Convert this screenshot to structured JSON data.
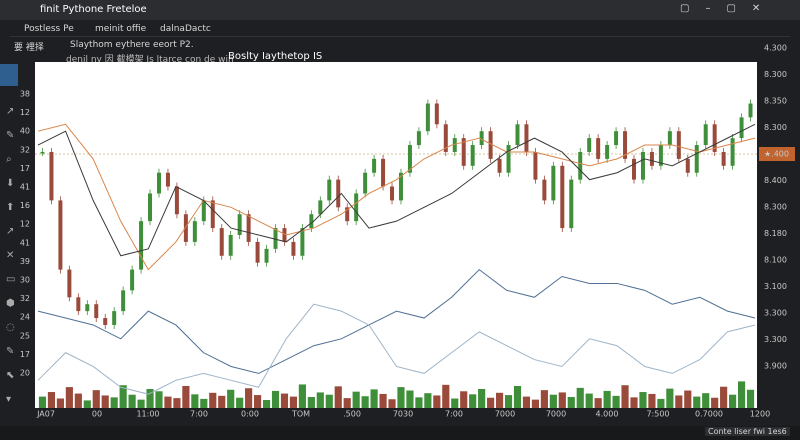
{
  "window": {
    "title": "finit Pythone Freteloe",
    "tabs": [
      "Postless Pe",
      "meinit offie",
      "dalnaDactc"
    ],
    "subtitle": "Slaythom eythere eeort P2.",
    "menu": "要 裡择",
    "toolbar_text": "denil ny 因 截模架 Is ltarce con de win",
    "toolbar_bold": "Boslty Iaythetop IS",
    "status": "Conte liser fwi 1es6"
  },
  "chart": {
    "left_axis": [
      "38",
      "12",
      "40",
      "32",
      "17",
      "41",
      "16",
      "12",
      "41",
      "39",
      "30",
      "32",
      "24",
      "25",
      "17",
      "20"
    ],
    "right_axis": [
      "4.300",
      "8.300",
      "8.350",
      "8.300",
      "★.400",
      "8.400",
      "8.300",
      "8.180",
      "8.100",
      "3.100",
      "3.300",
      "3.300",
      "3.900"
    ],
    "highlight_index": 4,
    "x_labels": [
      "JA07",
      "00",
      "11:00",
      "7:00",
      "0:00",
      "TOM",
      ".500",
      "7030",
      "7:00",
      "7000",
      "7000",
      "4.000",
      "7:500",
      "0.7000",
      "1200"
    ],
    "ylim": [
      8.0,
      8.5
    ],
    "vol_lim": [
      0,
      100
    ],
    "up_color": "#3f8f3a",
    "down_color": "#9a4a3a",
    "closes": [
      8.37,
      8.3,
      8.2,
      8.16,
      8.14,
      8.15,
      8.13,
      8.12,
      8.14,
      8.17,
      8.2,
      8.27,
      8.31,
      8.34,
      8.32,
      8.28,
      8.24,
      8.27,
      8.3,
      8.26,
      8.22,
      8.25,
      8.28,
      8.24,
      8.21,
      8.23,
      8.26,
      8.24,
      8.22,
      8.26,
      8.28,
      8.3,
      8.33,
      8.29,
      8.27,
      8.31,
      8.34,
      8.36,
      8.32,
      8.3,
      8.34,
      8.38,
      8.4,
      8.44,
      8.41,
      8.37,
      8.39,
      8.35,
      8.38,
      8.4,
      8.36,
      8.34,
      8.38,
      8.41,
      8.37,
      8.33,
      8.3,
      8.35,
      8.26,
      8.33,
      8.37,
      8.39,
      8.36,
      8.38,
      8.4,
      8.36,
      8.33,
      8.37,
      8.35,
      8.38,
      8.4,
      8.36,
      8.34,
      8.38,
      8.41,
      8.37,
      8.35,
      8.39,
      8.42,
      8.44
    ],
    "volumes": [
      30,
      42,
      25,
      55,
      38,
      20,
      47,
      33,
      28,
      60,
      35,
      22,
      50,
      44,
      30,
      26,
      58,
      36,
      24,
      40,
      32,
      48,
      27,
      52,
      34,
      21,
      45,
      38,
      30,
      62,
      29,
      41,
      35,
      57,
      26,
      43,
      31,
      49,
      37,
      23,
      55,
      46,
      28,
      39,
      33,
      61,
      25,
      44,
      36,
      50,
      27,
      40,
      34,
      58,
      30,
      22,
      47,
      35,
      41,
      29,
      53,
      38,
      26,
      45,
      32,
      60,
      28,
      42,
      37,
      24,
      51,
      33,
      46,
      30,
      39,
      27,
      56,
      35,
      70,
      48
    ],
    "lines": [
      {
        "name": "MA",
        "color": "#d9864a",
        "values": [
          8.4,
          8.41,
          8.36,
          8.27,
          8.2,
          8.24,
          8.3,
          8.29,
          8.27,
          8.25,
          8.26,
          8.28,
          8.31,
          8.33,
          8.36,
          8.38,
          8.39,
          8.37,
          8.37,
          8.36,
          8.35,
          8.36,
          8.38,
          8.38,
          8.37,
          8.38,
          8.39
        ]
      },
      {
        "name": "MA2",
        "color": "#3a3a3a",
        "values": [
          8.38,
          8.4,
          8.3,
          8.22,
          8.23,
          8.32,
          8.3,
          8.26,
          8.25,
          8.24,
          8.27,
          8.31,
          8.26,
          8.27,
          8.29,
          8.31,
          8.34,
          8.37,
          8.39,
          8.37,
          8.33,
          8.34,
          8.36,
          8.35,
          8.37,
          8.39,
          8.41
        ]
      },
      {
        "name": "IND",
        "color": "#4f6f94",
        "values": [
          8.14,
          8.13,
          8.12,
          8.1,
          8.14,
          8.12,
          8.08,
          8.06,
          8.05,
          8.07,
          8.09,
          8.1,
          8.12,
          8.14,
          8.13,
          8.16,
          8.2,
          8.17,
          8.16,
          8.19,
          8.18,
          8.18,
          8.17,
          8.15,
          8.16,
          8.14,
          8.13
        ]
      },
      {
        "name": "IND2",
        "color": "#9fb4c8",
        "values": [
          8.04,
          8.08,
          8.06,
          8.03,
          8.02,
          8.04,
          8.05,
          8.04,
          8.03,
          8.1,
          8.15,
          8.14,
          8.12,
          8.06,
          8.05,
          8.08,
          8.11,
          8.09,
          8.07,
          8.06,
          8.1,
          8.09,
          8.06,
          8.05,
          8.07,
          8.11,
          8.12
        ]
      }
    ]
  }
}
